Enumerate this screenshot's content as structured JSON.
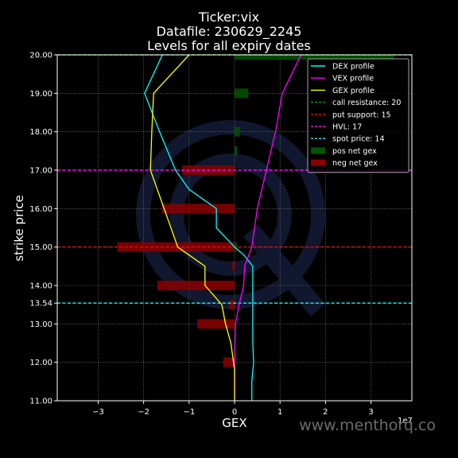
{
  "chart_data": {
    "type": "line",
    "title_lines": [
      "Ticker:vix",
      "Datafile: 230629_2245",
      "Levels for all expiry dates"
    ],
    "xlabel": "GEX",
    "ylabel": "strike price",
    "x_scale_label": "1e7",
    "xlim": [
      -3.9,
      3.9
    ],
    "ylim": [
      11,
      20
    ],
    "x_ticks": [
      -3,
      -2,
      -1,
      0,
      1,
      2,
      3
    ],
    "x_tick_labels": [
      "−3",
      "−2",
      "−1",
      "0",
      "1",
      "2",
      "3"
    ],
    "y_ticks": [
      11,
      12,
      13,
      13.54,
      14,
      15,
      16,
      17,
      18,
      19,
      20
    ],
    "y_tick_labels": [
      "11.00",
      "12.00",
      "13.00",
      "13.54",
      "14.00",
      "15.00",
      "16.00",
      "17.00",
      "18.00",
      "19.00",
      "20.00"
    ],
    "grid": true,
    "legend_position": "top-right",
    "series": [
      {
        "name": "DEX profile",
        "color": "#00ffff",
        "points": [
          [
            0.38,
            11
          ],
          [
            0.38,
            11.5
          ],
          [
            0.42,
            12
          ],
          [
            0.4,
            12.5
          ],
          [
            0.4,
            13
          ],
          [
            0.4,
            13.5
          ],
          [
            0.4,
            14
          ],
          [
            0.4,
            14.5
          ],
          [
            0.2,
            14.8
          ],
          [
            0,
            15
          ],
          [
            -0.4,
            15.5
          ],
          [
            -0.4,
            16
          ],
          [
            -1.0,
            16.5
          ],
          [
            -1.3,
            17
          ],
          [
            -1.65,
            18
          ],
          [
            -1.98,
            19
          ],
          [
            -1.55,
            20.1
          ]
        ]
      },
      {
        "name": "VEX profile",
        "color": "#ff00ff",
        "points": [
          [
            0,
            11
          ],
          [
            0,
            12
          ],
          [
            0.02,
            13
          ],
          [
            0.1,
            13.5
          ],
          [
            0.2,
            14
          ],
          [
            0.22,
            14.5
          ],
          [
            0.38,
            15
          ],
          [
            0.5,
            16
          ],
          [
            0.7,
            17
          ],
          [
            0.9,
            18
          ],
          [
            1.05,
            19
          ],
          [
            1.5,
            20.1
          ]
        ]
      },
      {
        "name": "GEX profile",
        "color": "#ffff00",
        "points": [
          [
            0,
            11
          ],
          [
            0,
            11.8
          ],
          [
            -0.08,
            12.5
          ],
          [
            -0.2,
            13
          ],
          [
            -0.28,
            13.5
          ],
          [
            -0.65,
            14
          ],
          [
            -0.65,
            14.5
          ],
          [
            -1.25,
            15
          ],
          [
            -1.55,
            16
          ],
          [
            -1.85,
            17
          ],
          [
            -1.82,
            18
          ],
          [
            -1.78,
            19
          ],
          [
            -1.0,
            20
          ]
        ]
      }
    ],
    "levels": [
      {
        "name": "call resistance: 20",
        "value": 20,
        "color": "#00aa00",
        "style": "dashed"
      },
      {
        "name": "put support: 15",
        "value": 15,
        "color": "#ff0000",
        "style": "dashed"
      },
      {
        "name": "HVL: 17",
        "value": 17,
        "color": "#ff00ff",
        "style": "dashed"
      },
      {
        "name": "spot price: 14",
        "value": 13.54,
        "color": "#00ffff",
        "style": "dashed"
      }
    ],
    "pos_net_gex": {
      "name": "pos net gex",
      "color": "#005500",
      "bars": [
        [
          20,
          3.5
        ],
        [
          19,
          0.3
        ],
        [
          18,
          0.12
        ],
        [
          17.5,
          0.06
        ],
        [
          15,
          0.05
        ]
      ]
    },
    "neg_net_gex": {
      "name": "neg net gex",
      "color": "#8b0000",
      "bars": [
        [
          17,
          -1.15
        ],
        [
          16,
          -1.6
        ],
        [
          15,
          -2.58
        ],
        [
          14.5,
          -0.05
        ],
        [
          14,
          -1.7
        ],
        [
          13.5,
          -0.12
        ],
        [
          13,
          -0.82
        ],
        [
          12,
          -0.25
        ]
      ]
    }
  },
  "watermark": "www.menthorq.co"
}
